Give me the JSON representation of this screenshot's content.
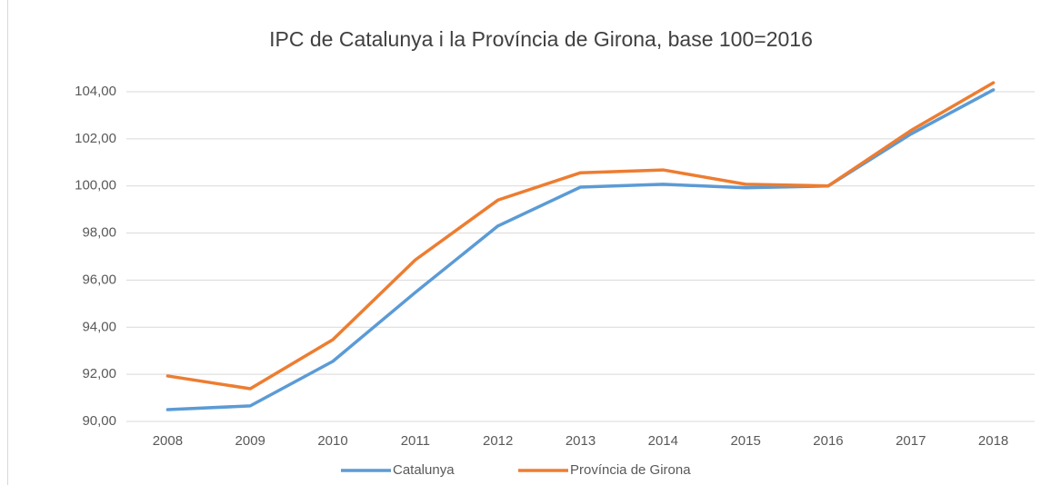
{
  "chart_data": {
    "type": "line",
    "title": "IPC de Catalunya i la Província de Girona, base 100=2016",
    "categories": [
      "2008",
      "2009",
      "2010",
      "2011",
      "2012",
      "2013",
      "2014",
      "2015",
      "2016",
      "2017",
      "2018"
    ],
    "series": [
      {
        "name": "Catalunya",
        "color": "#5b9bd5",
        "values": [
          90.5,
          90.66,
          92.55,
          95.48,
          98.3,
          99.95,
          100.07,
          99.92,
          100.0,
          102.2,
          104.08
        ]
      },
      {
        "name": "Província de Girona",
        "color": "#ed7d31",
        "values": [
          91.93,
          91.39,
          93.47,
          96.86,
          99.4,
          100.56,
          100.68,
          100.07,
          100.0,
          102.35,
          104.38
        ]
      }
    ],
    "ylim": [
      90,
      104
    ],
    "yticks": [
      {
        "value": 90,
        "label": "90,00"
      },
      {
        "value": 92,
        "label": "92,00"
      },
      {
        "value": 94,
        "label": "94,00"
      },
      {
        "value": 96,
        "label": "96,00"
      },
      {
        "value": 98,
        "label": "98,00"
      },
      {
        "value": 100,
        "label": "100,00"
      },
      {
        "value": 102,
        "label": "102,00"
      },
      {
        "value": 104,
        "label": "104,00"
      }
    ],
    "grid": true,
    "legend": "bottom"
  }
}
